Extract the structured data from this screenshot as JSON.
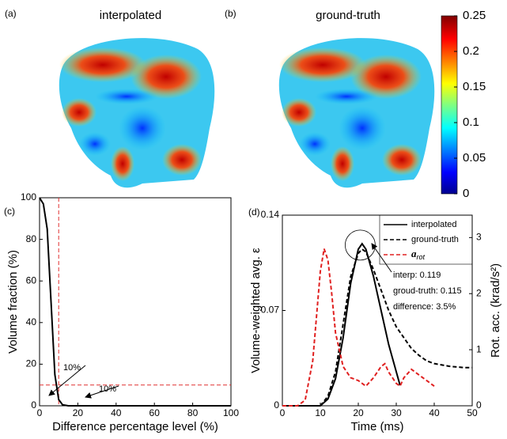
{
  "panels": [
    {
      "label": "(a)",
      "title": "interpolated"
    },
    {
      "label": "(b)",
      "title": "ground-truth"
    }
  ],
  "colorbar": {
    "ylim": [
      0,
      0.25
    ],
    "yticks": [
      0,
      0.05,
      0.1,
      0.15,
      0.2,
      0.25
    ]
  },
  "chart_data": [
    {
      "type": "line",
      "label": "(c)",
      "x_label": "Difference percentage level (%)",
      "y_label": "Volume fraction (%)",
      "xlim": [
        0,
        100
      ],
      "ylim": [
        0,
        100
      ],
      "xticks": [
        0,
        20,
        40,
        60,
        80,
        100
      ],
      "yticks": [
        0,
        20,
        40,
        60,
        80,
        100
      ],
      "series": [
        {
          "color": "#000000",
          "x": [
            0,
            2,
            4,
            6,
            8,
            10,
            12,
            15,
            20,
            100
          ],
          "values": [
            100,
            97,
            85,
            50,
            15,
            3,
            0.5,
            0,
            0,
            0
          ]
        }
      ],
      "reference_lines": [
        {
          "axis": "x",
          "value": 10,
          "color": "#e03030"
        },
        {
          "axis": "y",
          "value": 10,
          "color": "#e03030"
        }
      ],
      "annotations": [
        "10%",
        "10%"
      ]
    },
    {
      "type": "line",
      "label": "(d)",
      "x_label": "Time (ms)",
      "y_label": "Volume-weighted avg. ε",
      "y2_label": "Rot. acc. (krad/s²)",
      "xlim": [
        0,
        50
      ],
      "ylim": [
        0,
        0.14
      ],
      "y2lim": [
        0,
        3.4
      ],
      "xticks": [
        0,
        10,
        20,
        30,
        40,
        50
      ],
      "yticks": [
        0,
        0.07,
        0.14
      ],
      "y2ticks": [
        0,
        1,
        2,
        3
      ],
      "series": [
        {
          "name": "interpolated",
          "color": "#000000",
          "dash": false,
          "x": [
            0,
            10,
            12,
            14,
            16,
            18,
            20,
            21,
            22,
            24,
            26,
            28,
            30,
            31
          ],
          "values": [
            0,
            0,
            0.005,
            0.02,
            0.05,
            0.09,
            0.115,
            0.119,
            0.115,
            0.095,
            0.07,
            0.045,
            0.025,
            0.015
          ]
        },
        {
          "name": "ground-truth",
          "color": "#000000",
          "dash": true,
          "x": [
            0,
            10,
            12,
            14,
            16,
            18,
            20,
            21,
            22,
            24,
            26,
            28,
            30,
            32,
            34,
            36,
            38,
            40,
            44,
            48,
            50
          ],
          "values": [
            0,
            0,
            0.007,
            0.025,
            0.06,
            0.095,
            0.112,
            0.115,
            0.113,
            0.1,
            0.085,
            0.07,
            0.058,
            0.05,
            0.042,
            0.037,
            0.033,
            0.031,
            0.029,
            0.028,
            0.028
          ]
        },
        {
          "name": "a",
          "subscript": "rot",
          "color": "#e02020",
          "dash": true,
          "axis": "y2",
          "x": [
            0,
            4,
            6,
            8,
            10,
            11,
            12,
            13,
            14,
            16,
            18,
            20,
            22,
            24,
            26,
            27,
            28,
            30,
            31,
            32,
            34,
            36,
            38,
            40
          ],
          "values": [
            0,
            0,
            0.1,
            0.8,
            2.4,
            2.8,
            2.6,
            2.0,
            1.3,
            0.7,
            0.5,
            0.45,
            0.35,
            0.5,
            0.7,
            0.75,
            0.6,
            0.4,
            0.35,
            0.5,
            0.65,
            0.55,
            0.45,
            0.35
          ]
        }
      ],
      "annotations": [
        "interp: 0.119",
        "groud-truth: 0.115",
        "difference: 3.5%"
      ]
    }
  ]
}
